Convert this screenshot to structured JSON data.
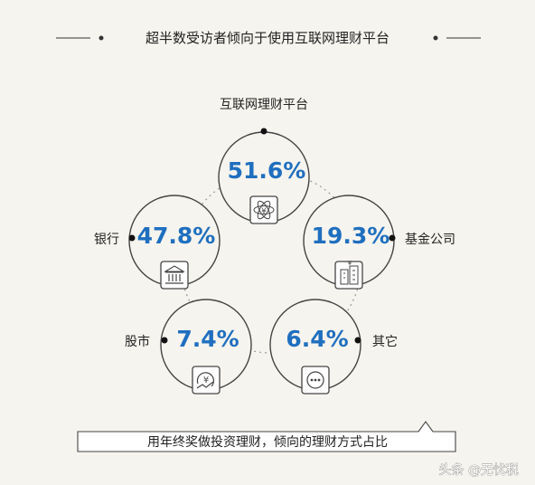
{
  "title": "超半数受访者倾向于使用互联网理财平台",
  "caption": "用年终奖做投资理财，倾向的理财方式占比",
  "watermark": "头条 @无忧税",
  "colors": {
    "accent": "#1f6fbf",
    "ring": "#444444",
    "dotted": "#9a9a9a",
    "background": "#f6f4ee"
  },
  "chart_data": {
    "type": "bubble-cycle",
    "unit": "%",
    "items": [
      {
        "label": "互联网理财平台",
        "value": 51.6,
        "display": "51.6%",
        "icon": "atom-yuan-icon"
      },
      {
        "label": "基金公司",
        "value": 19.3,
        "display": "19.3%",
        "icon": "building-icon"
      },
      {
        "label": "其它",
        "value": 6.4,
        "display": "6.4%",
        "icon": "more-dots-icon"
      },
      {
        "label": "股市",
        "value": 7.4,
        "display": "7.4%",
        "icon": "yuan-trend-icon"
      },
      {
        "label": "银行",
        "value": 47.8,
        "display": "47.8%",
        "icon": "bank-icon"
      }
    ]
  }
}
